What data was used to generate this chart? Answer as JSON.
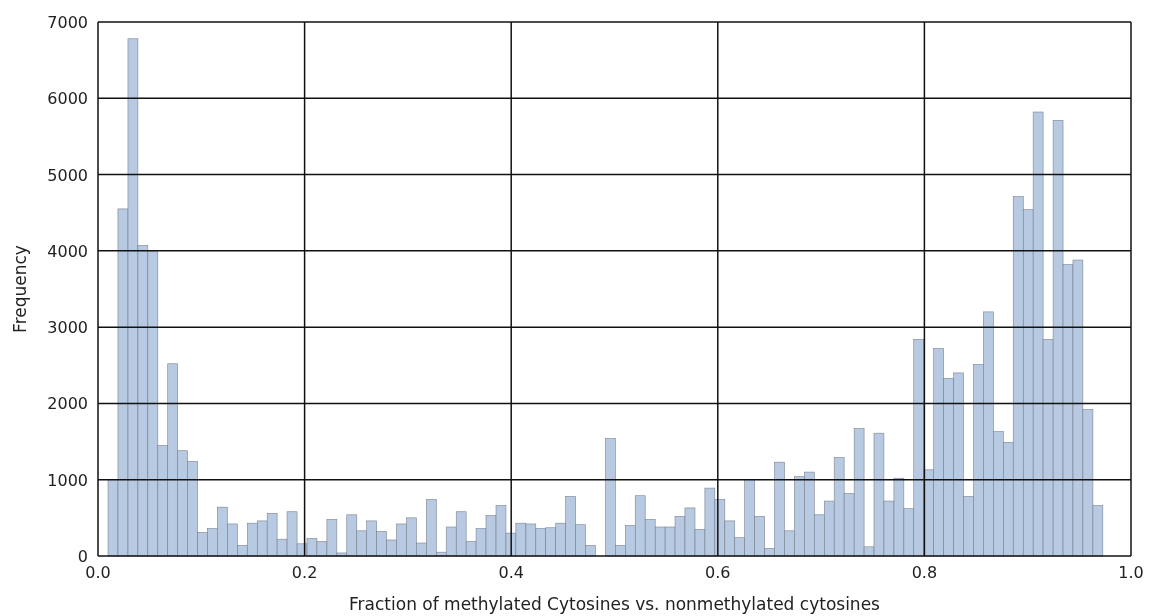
{
  "chart_data": {
    "type": "histogram",
    "xlabel": "Fraction of methylated Cytosines vs. nonmethylated cytosines",
    "ylabel": "Frequency",
    "bins": [
      0.0097,
      0.0193,
      0.029,
      0.0386,
      0.0482,
      0.0579,
      0.0675,
      0.0771,
      0.0867,
      0.0964,
      0.106,
      0.1156,
      0.1253,
      0.1349,
      0.1445,
      0.1542,
      0.1638,
      0.1734,
      0.183,
      0.1927,
      0.2023,
      0.2119,
      0.2216,
      0.2312,
      0.2408,
      0.2505,
      0.2601,
      0.2697,
      0.2793,
      0.289,
      0.2986,
      0.3082,
      0.3179,
      0.3275,
      0.3371,
      0.3468,
      0.3564,
      0.366,
      0.3756,
      0.3853,
      0.3949,
      0.4045,
      0.4142,
      0.4238,
      0.4334,
      0.4431,
      0.4527,
      0.4623,
      0.4719,
      0.4816,
      0.4912,
      0.5008,
      0.5105,
      0.5201,
      0.5297,
      0.5394,
      0.549,
      0.5586,
      0.5682,
      0.5779,
      0.5875,
      0.5971,
      0.6068,
      0.6164,
      0.626,
      0.6357,
      0.6453,
      0.6549,
      0.6645,
      0.6742,
      0.6838,
      0.6934,
      0.7031,
      0.7127,
      0.7223,
      0.732,
      0.7416,
      0.7512,
      0.7608,
      0.7705,
      0.7801,
      0.7897,
      0.7994,
      0.809,
      0.8186,
      0.8283,
      0.8379,
      0.8475,
      0.8571,
      0.8668,
      0.8764,
      0.886,
      0.8957,
      0.9053,
      0.9149,
      0.9246,
      0.9342,
      0.9438,
      0.9534,
      0.9631,
      0.9727
    ],
    "values": [
      1000,
      4550,
      6780,
      4070,
      4000,
      1450,
      2520,
      1380,
      1240,
      310,
      360,
      640,
      420,
      140,
      430,
      460,
      560,
      220,
      580,
      160,
      230,
      190,
      480,
      40,
      540,
      330,
      460,
      320,
      210,
      420,
      500,
      170,
      740,
      50,
      380,
      580,
      190,
      360,
      530,
      660,
      300,
      430,
      420,
      360,
      370,
      430,
      780,
      410,
      140,
      0,
      1540,
      140,
      400,
      790,
      480,
      380,
      380,
      520,
      630,
      350,
      890,
      740,
      460,
      240,
      1000,
      520,
      100,
      1230,
      330,
      1040,
      1100,
      540,
      720,
      1290,
      820,
      1670,
      120,
      1610,
      720,
      1020,
      620,
      2840,
      1130,
      2720,
      2330,
      2400,
      780,
      2510,
      3200,
      1630,
      1490,
      4710,
      4540,
      5820,
      2840,
      5710,
      3820,
      3880,
      1920,
      660
    ],
    "color": "#b0c4de",
    "xlim": [
      0,
      1
    ],
    "xticks": [
      {
        "value": 0,
        "label": "0.0"
      },
      {
        "value": 0.2,
        "label": "0.2"
      },
      {
        "value": 0.4,
        "label": "0.4"
      },
      {
        "value": 0.6,
        "label": "0.6"
      },
      {
        "value": 0.8,
        "label": "0.8"
      },
      {
        "value": 1,
        "label": "1.0"
      }
    ],
    "ylim": [
      0,
      7000
    ],
    "yticks": [
      0,
      1000,
      2000,
      3000,
      4000,
      5000,
      6000,
      7000
    ],
    "grid": true
  }
}
